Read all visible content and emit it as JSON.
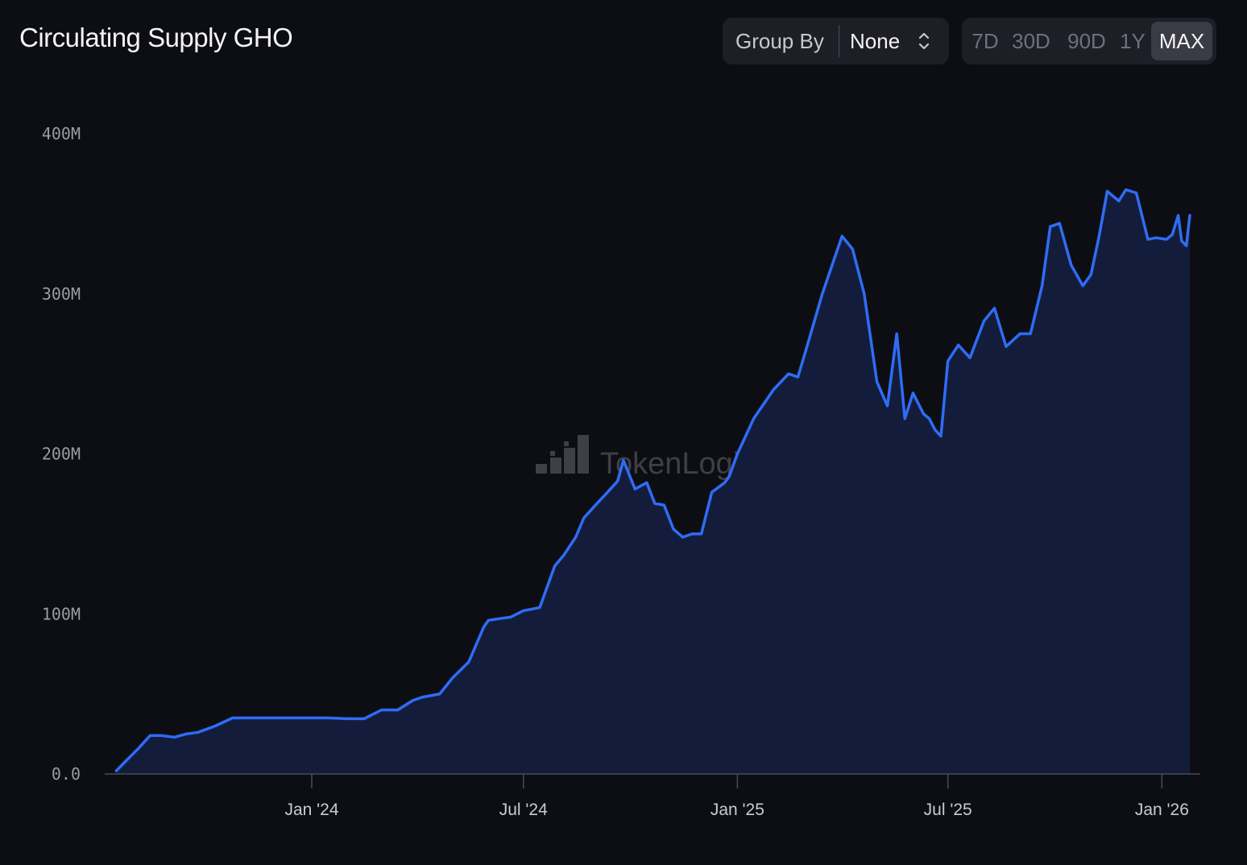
{
  "header": {
    "title": "Circulating Supply GHO"
  },
  "group_by": {
    "label": "Group By",
    "value": "None"
  },
  "ranges": [
    {
      "label": "7D",
      "active": false
    },
    {
      "label": "30D",
      "active": false
    },
    {
      "label": "90D",
      "active": false
    },
    {
      "label": "1Y",
      "active": false
    },
    {
      "label": "MAX",
      "active": true
    }
  ],
  "watermark": {
    "text": "TokenLogic"
  },
  "colors": {
    "line": "#2f6cf6",
    "area": "#131d3b",
    "background": "#0d0e13"
  },
  "chart_data": {
    "type": "area",
    "title": "Circulating Supply GHO",
    "xlabel": "",
    "ylabel": "",
    "ylim": [
      0,
      400000000
    ],
    "xlim": [
      "2023-07-16",
      "2026-01-25"
    ],
    "y_ticks": [
      {
        "value": 0,
        "label": "0.0"
      },
      {
        "value": 100000000,
        "label": "100M"
      },
      {
        "value": 200000000,
        "label": "200M"
      },
      {
        "value": 300000000,
        "label": "300M"
      },
      {
        "value": 400000000,
        "label": "400M"
      }
    ],
    "x_ticks": [
      {
        "date": "2024-01-01",
        "label": "Jan '24"
      },
      {
        "date": "2024-07-01",
        "label": "Jul '24"
      },
      {
        "date": "2025-01-01",
        "label": "Jan '25"
      },
      {
        "date": "2025-07-01",
        "label": "Jul '25"
      },
      {
        "date": "2026-01-01",
        "label": "Jan '26"
      }
    ],
    "grid": false,
    "legend": "none",
    "series": [
      {
        "x": [
          "2023-07-17",
          "2023-07-25",
          "2023-08-05",
          "2023-08-15",
          "2023-08-25",
          "2023-09-05",
          "2023-09-15",
          "2023-09-25",
          "2023-10-10",
          "2023-10-25",
          "2023-11-05",
          "2023-11-16",
          "2023-12-01",
          "2023-12-15",
          "2024-01-01",
          "2024-01-15",
          "2024-02-01",
          "2024-02-15",
          "2024-03-01",
          "2024-03-10",
          "2024-03-15",
          "2024-03-28",
          "2024-04-05",
          "2024-04-20",
          "2024-05-01",
          "2024-05-15",
          "2024-05-28",
          "2024-06-01",
          "2024-06-10",
          "2024-06-20",
          "2024-07-01",
          "2024-07-15",
          "2024-07-28",
          "2024-08-05",
          "2024-08-15",
          "2024-08-22",
          "2024-09-01",
          "2024-09-10",
          "2024-09-20",
          "2024-09-25",
          "2024-10-05",
          "2024-10-15",
          "2024-10-22",
          "2024-10-30",
          "2024-11-07",
          "2024-11-15",
          "2024-11-23",
          "2024-12-01",
          "2024-12-10",
          "2024-12-21",
          "2024-12-25",
          "2025-01-01",
          "2025-01-15",
          "2025-02-01",
          "2025-02-14",
          "2025-02-22",
          "2025-03-01",
          "2025-03-15",
          "2025-04-01",
          "2025-04-10",
          "2025-04-20",
          "2025-05-01",
          "2025-05-10",
          "2025-05-18",
          "2025-05-25",
          "2025-06-01",
          "2025-06-10",
          "2025-06-15",
          "2025-06-20",
          "2025-06-25",
          "2025-07-01",
          "2025-07-10",
          "2025-07-20",
          "2025-08-01",
          "2025-08-10",
          "2025-08-20",
          "2025-09-01",
          "2025-09-10",
          "2025-09-20",
          "2025-09-27",
          "2025-10-05",
          "2025-10-15",
          "2025-10-25",
          "2025-11-01",
          "2025-11-08",
          "2025-11-15",
          "2025-11-25",
          "2025-12-01",
          "2025-12-10",
          "2025-12-20",
          "2025-12-27",
          "2026-01-05",
          "2026-01-10",
          "2026-01-15",
          "2026-01-18",
          "2026-01-22",
          "2026-01-25"
        ],
        "y": [
          2000000,
          8000000,
          16000000,
          24000000,
          24000000,
          23000000,
          25000000,
          26000000,
          30000000,
          35000000,
          35000000,
          35000000,
          35000000,
          35000000,
          35000000,
          35000000,
          34500000,
          34500000,
          40000000,
          40000000,
          40000000,
          46000000,
          48000000,
          50000000,
          60000000,
          70000000,
          92000000,
          96000000,
          97000000,
          98000000,
          102000000,
          104000000,
          130000000,
          137000000,
          148000000,
          160000000,
          168000000,
          175000000,
          183000000,
          196000000,
          178000000,
          182000000,
          169000000,
          168000000,
          153000000,
          148000000,
          150000000,
          150000000,
          176000000,
          182000000,
          186000000,
          200000000,
          222000000,
          240000000,
          250000000,
          248000000,
          265000000,
          300000000,
          336000000,
          328000000,
          300000000,
          245000000,
          230000000,
          275000000,
          222000000,
          238000000,
          225000000,
          222000000,
          215000000,
          211000000,
          258000000,
          268000000,
          260000000,
          283000000,
          291000000,
          267000000,
          275000000,
          275000000,
          305000000,
          342000000,
          344000000,
          318000000,
          305000000,
          312000000,
          336000000,
          364000000,
          358000000,
          365000000,
          363000000,
          334000000,
          335000000,
          334000000,
          337000000,
          349000000,
          333000000,
          330000000,
          349000000
        ]
      }
    ]
  }
}
